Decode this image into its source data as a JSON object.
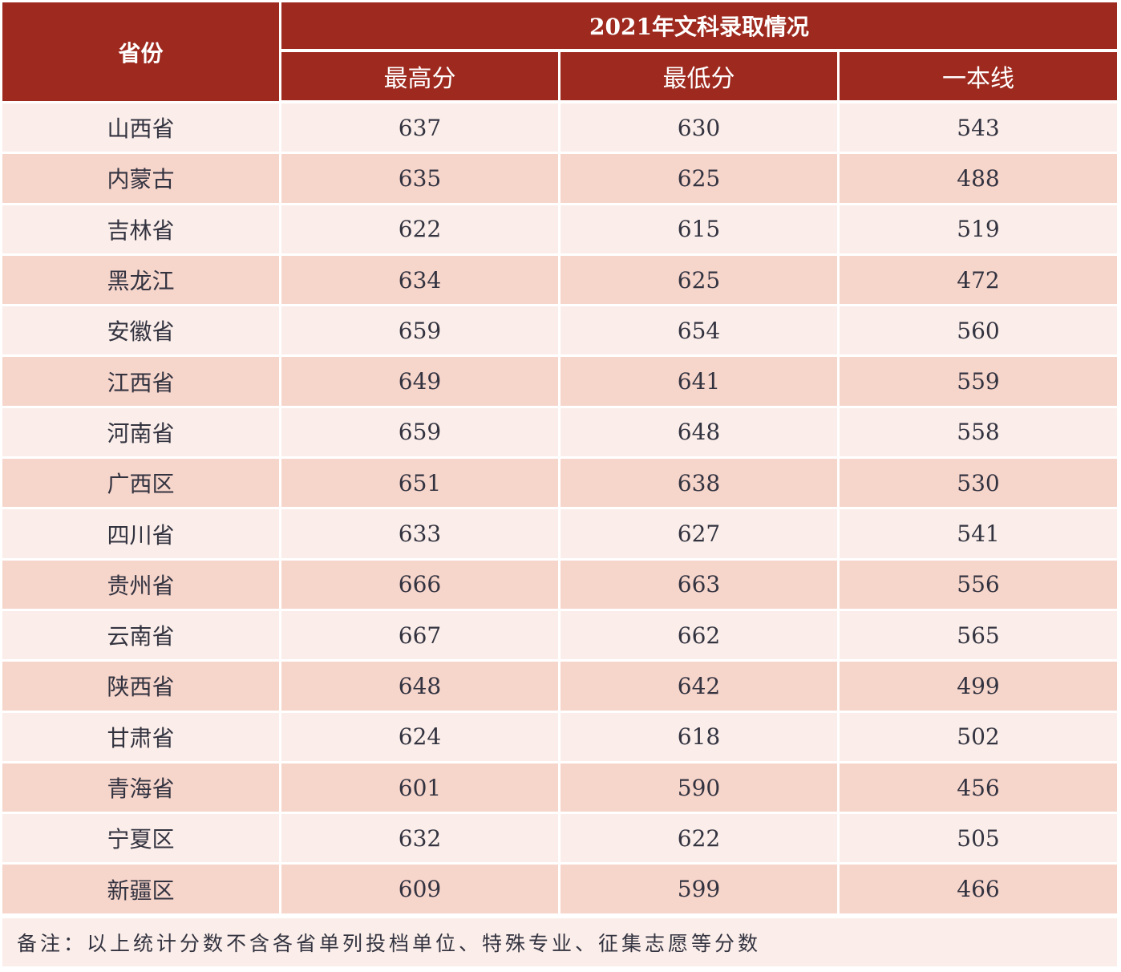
{
  "header": {
    "province": "省份",
    "title": "2021年文科录取情况",
    "columns": [
      "最高分",
      "最低分",
      "一本线"
    ]
  },
  "colors": {
    "header_bg": "#9e2a1f",
    "row_light": "#fbeeea",
    "row_dark": "#f6d5cb"
  },
  "rows": [
    {
      "province": "山西省",
      "max": "637",
      "min": "630",
      "line": "543"
    },
    {
      "province": "内蒙古",
      "max": "635",
      "min": "625",
      "line": "488"
    },
    {
      "province": "吉林省",
      "max": "622",
      "min": "615",
      "line": "519"
    },
    {
      "province": "黑龙江",
      "max": "634",
      "min": "625",
      "line": "472"
    },
    {
      "province": "安徽省",
      "max": "659",
      "min": "654",
      "line": "560"
    },
    {
      "province": "江西省",
      "max": "649",
      "min": "641",
      "line": "559"
    },
    {
      "province": "河南省",
      "max": "659",
      "min": "648",
      "line": "558"
    },
    {
      "province": "广西区",
      "max": "651",
      "min": "638",
      "line": "530"
    },
    {
      "province": "四川省",
      "max": "633",
      "min": "627",
      "line": "541"
    },
    {
      "province": "贵州省",
      "max": "666",
      "min": "663",
      "line": "556"
    },
    {
      "province": "云南省",
      "max": "667",
      "min": "662",
      "line": "565"
    },
    {
      "province": "陕西省",
      "max": "648",
      "min": "642",
      "line": "499"
    },
    {
      "province": "甘肃省",
      "max": "624",
      "min": "618",
      "line": "502"
    },
    {
      "province": "青海省",
      "max": "601",
      "min": "590",
      "line": "456"
    },
    {
      "province": "宁夏区",
      "max": "632",
      "min": "622",
      "line": "505"
    },
    {
      "province": "新疆区",
      "max": "609",
      "min": "599",
      "line": "466"
    }
  ],
  "note": "备注：以上统计分数不含各省单列投档单位、特殊专业、征集志愿等分数"
}
